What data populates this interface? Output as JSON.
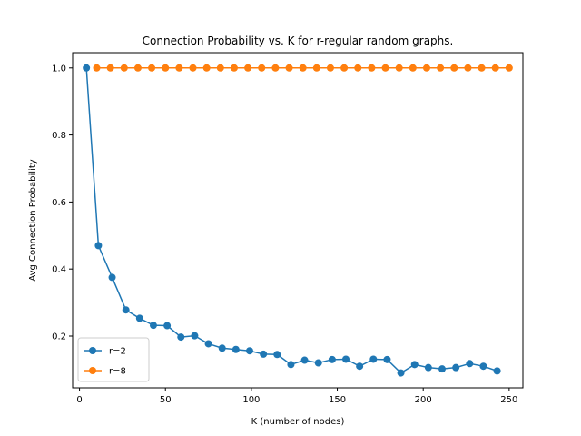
{
  "chart_data": {
    "type": "line",
    "title": "Connection Probability vs. K for r-regular random graphs.",
    "xlabel": "K (number of nodes)",
    "ylabel": "Avg Connection Probability",
    "xlim": [
      -4,
      258
    ],
    "ylim": [
      0.0455,
      1.0455
    ],
    "xticks": [
      0,
      50,
      100,
      150,
      200,
      250
    ],
    "yticks": [
      0.2,
      0.4,
      0.6,
      0.8,
      1.0
    ],
    "xtick_labels": [
      "0",
      "50",
      "100",
      "150",
      "200",
      "250"
    ],
    "ytick_labels": [
      "0.2",
      "0.4",
      "0.6",
      "0.8",
      "1.0"
    ],
    "grid": false,
    "legend_position": "lower-left",
    "series": [
      {
        "name": "r=2",
        "color": "#1f77b4",
        "marker": "circle",
        "x": [
          4,
          11,
          19,
          27,
          35,
          43,
          51,
          59,
          67,
          75,
          83,
          91,
          99,
          107,
          115,
          123,
          131,
          139,
          147,
          155,
          163,
          171,
          179,
          187,
          195,
          203,
          211,
          219,
          227,
          235,
          243
        ],
        "y": [
          1.0,
          0.47,
          0.375,
          0.278,
          0.253,
          0.232,
          0.231,
          0.197,
          0.201,
          0.177,
          0.164,
          0.16,
          0.156,
          0.146,
          0.145,
          0.115,
          0.128,
          0.12,
          0.13,
          0.131,
          0.11,
          0.131,
          0.13,
          0.09,
          0.115,
          0.106,
          0.102,
          0.106,
          0.118,
          0.11,
          0.096
        ]
      },
      {
        "name": "r=8",
        "color": "#ff7f0e",
        "marker": "circle",
        "x": [
          10,
          18,
          26,
          34,
          42,
          50,
          58,
          66,
          74,
          82,
          90,
          98,
          106,
          114,
          122,
          130,
          138,
          146,
          154,
          162,
          170,
          178,
          186,
          194,
          202,
          210,
          218,
          226,
          234,
          242,
          250
        ],
        "y": [
          1.0,
          1.0,
          1.0,
          1.0,
          1.0,
          1.0,
          1.0,
          1.0,
          1.0,
          1.0,
          1.0,
          1.0,
          1.0,
          1.0,
          1.0,
          1.0,
          1.0,
          1.0,
          1.0,
          1.0,
          1.0,
          1.0,
          1.0,
          1.0,
          1.0,
          1.0,
          1.0,
          1.0,
          1.0,
          1.0,
          1.0
        ]
      }
    ]
  }
}
